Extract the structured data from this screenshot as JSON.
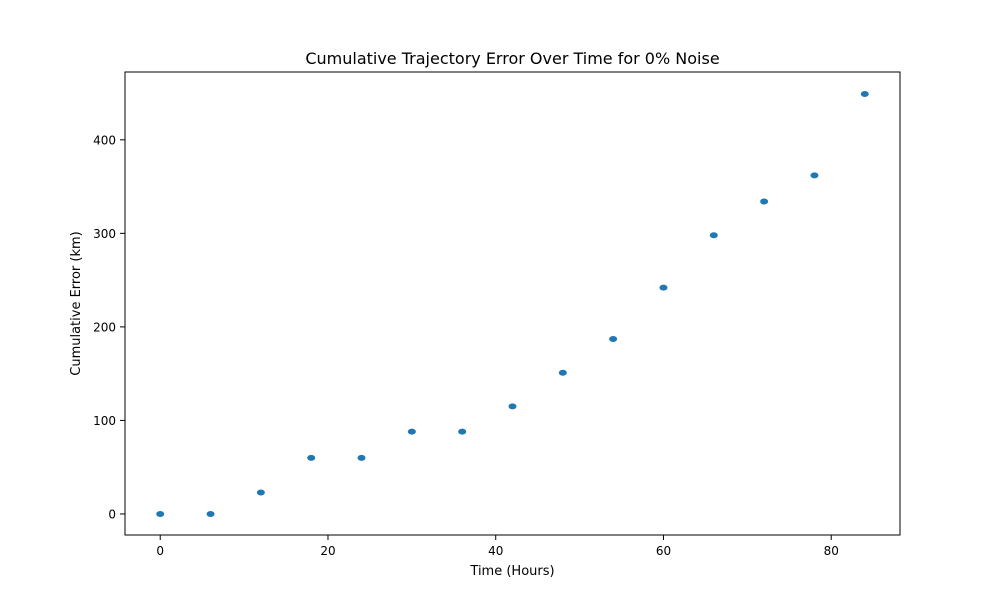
{
  "chart_data": {
    "type": "scatter",
    "title": "Cumulative Trajectory Error Over Time for  0% Noise",
    "xlabel": "Time (Hours)",
    "ylabel": "Cumulative Error (km)",
    "xlim": [
      -4.2,
      88.2
    ],
    "ylim": [
      -22.5,
      472.5
    ],
    "xticks": [
      0,
      20,
      40,
      60,
      80
    ],
    "yticks": [
      0,
      100,
      200,
      300,
      400
    ],
    "grid": false,
    "legend": "none",
    "marker_color": "#1f77b4",
    "series": [
      {
        "x": [
          0,
          6,
          12,
          18,
          24,
          30,
          36,
          42,
          48,
          54,
          60,
          66,
          72,
          78,
          84
        ],
        "y": [
          0,
          0,
          23,
          60,
          60,
          88,
          88,
          115,
          151,
          187,
          242,
          298,
          334,
          362,
          449
        ]
      }
    ]
  }
}
